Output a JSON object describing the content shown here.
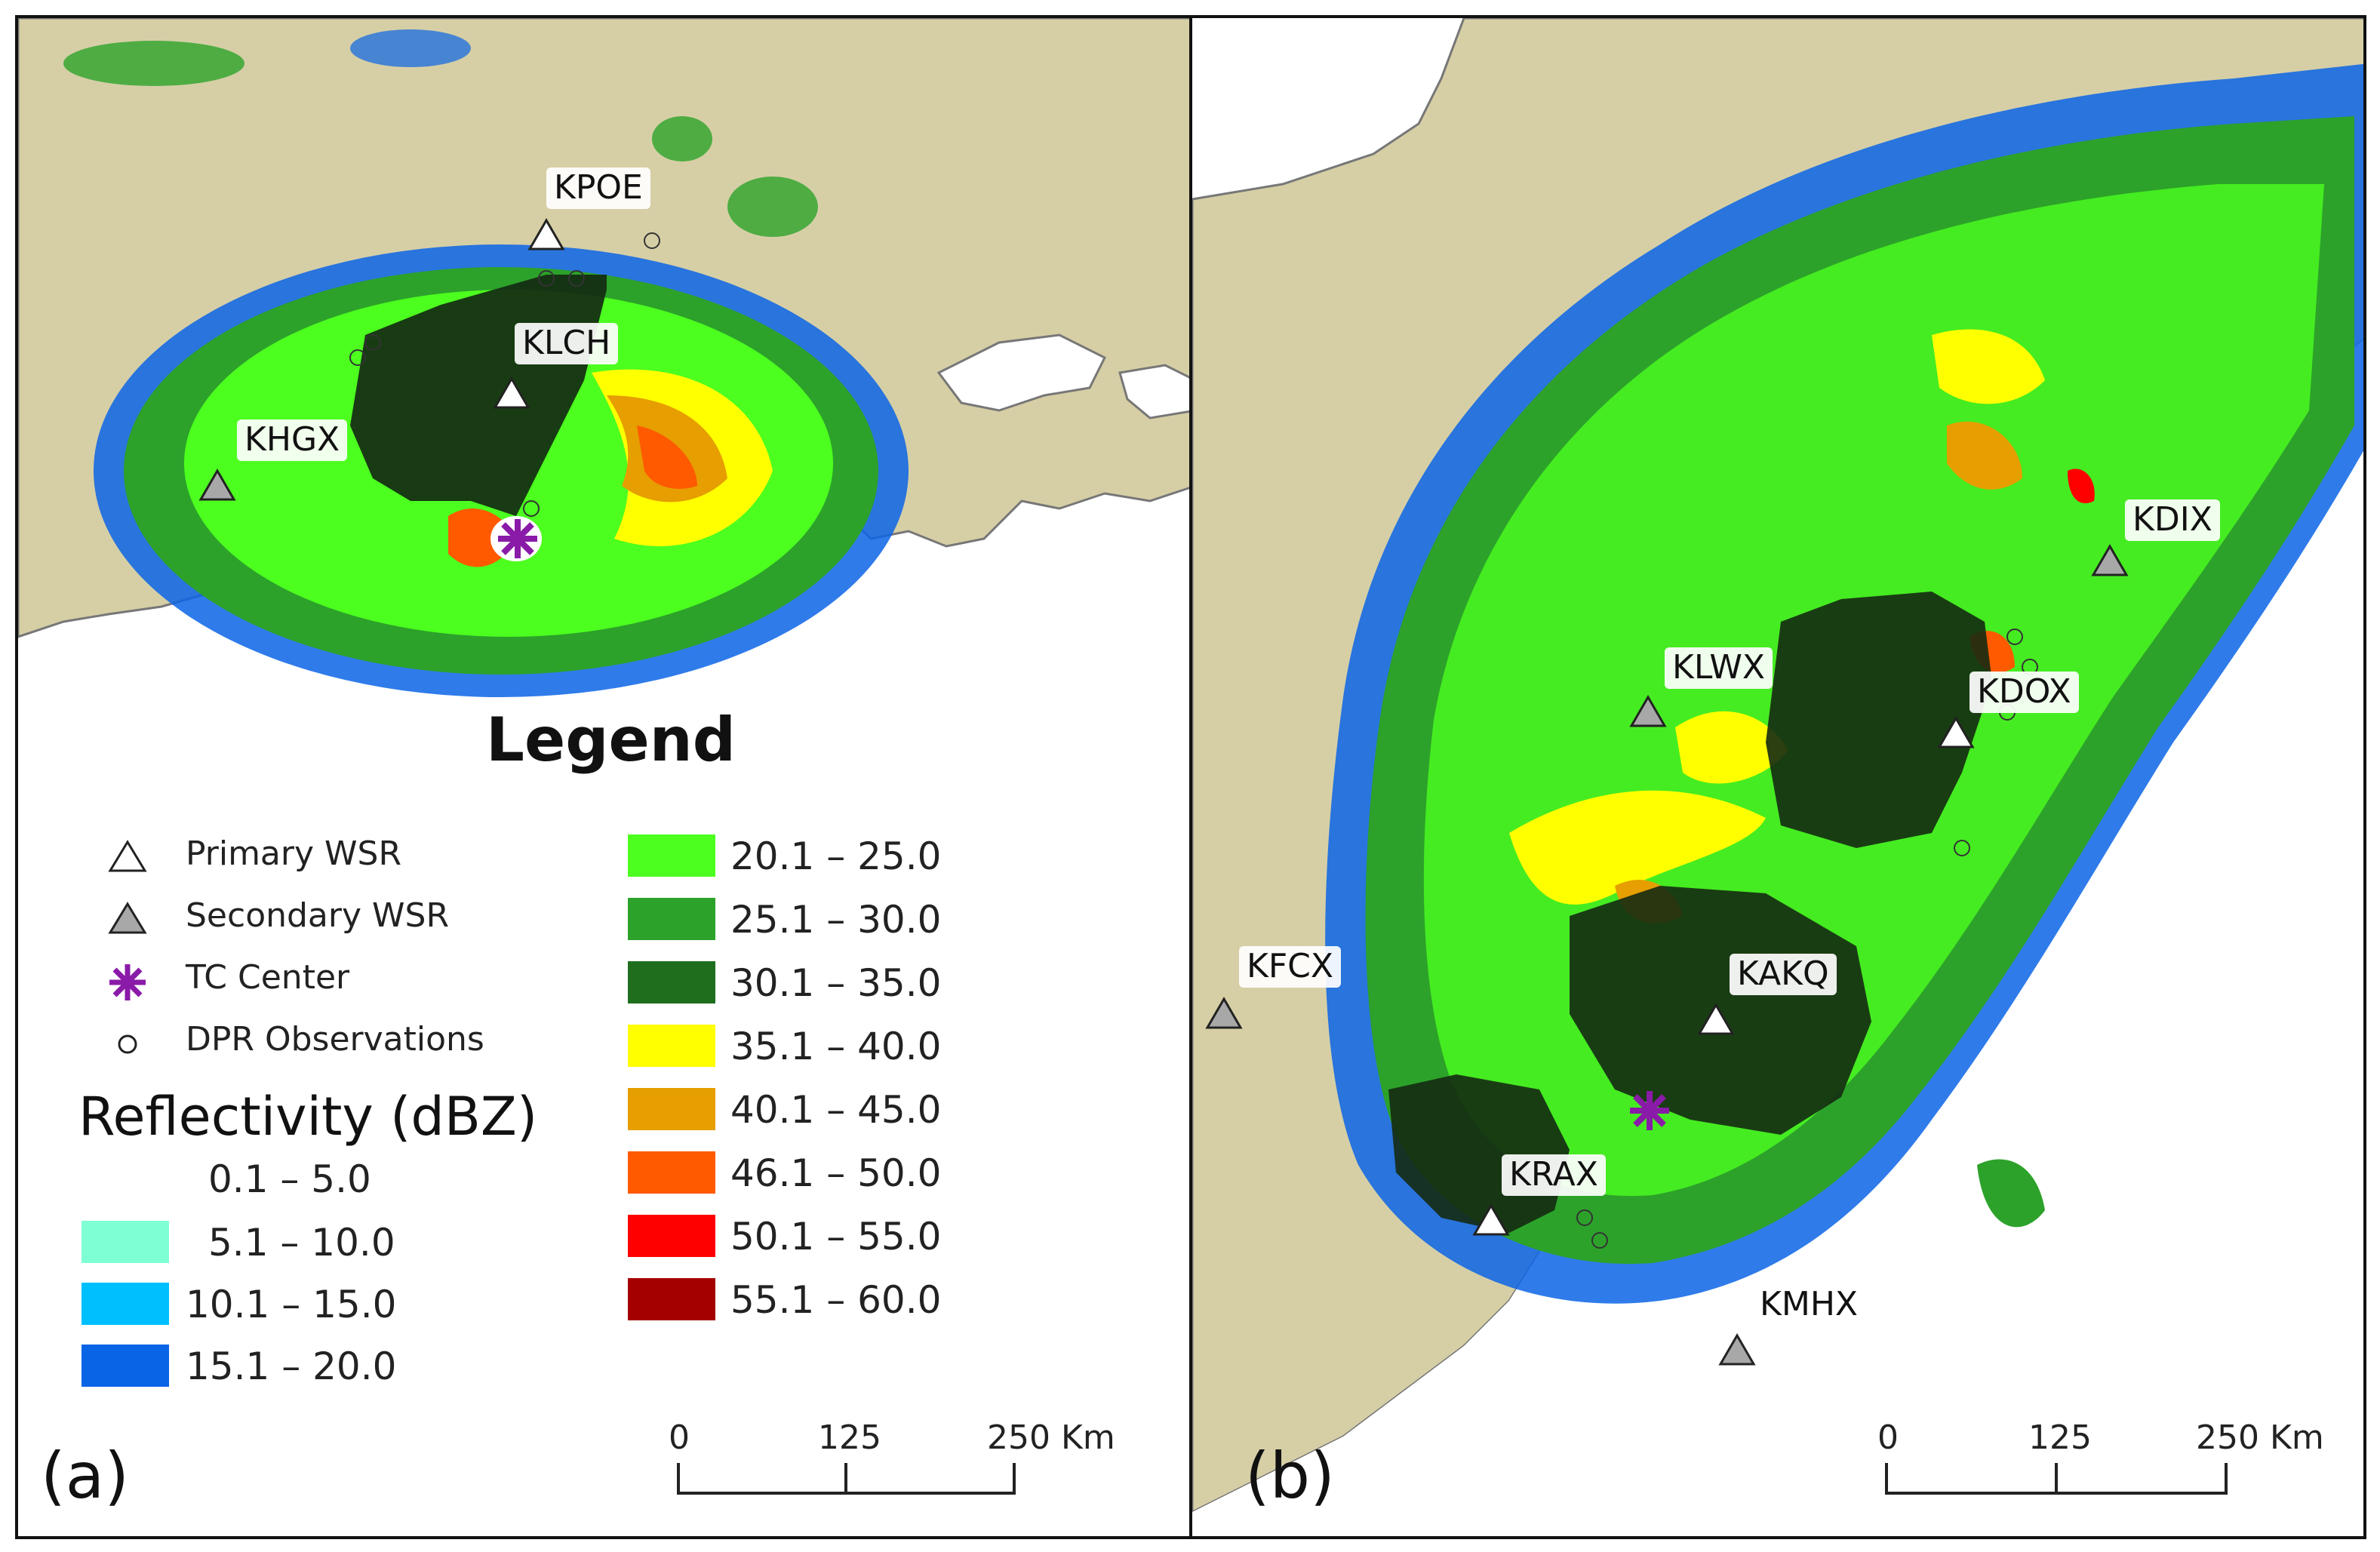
{
  "panels": {
    "a": {
      "letter": "(a)",
      "stations": [
        {
          "id": "KPOE",
          "type": "primary"
        },
        {
          "id": "KLCH",
          "type": "primary"
        },
        {
          "id": "KHGX",
          "type": "secondary"
        }
      ]
    },
    "b": {
      "letter": "(b)",
      "stations": [
        {
          "id": "KDIX",
          "type": "secondary"
        },
        {
          "id": "KDOX",
          "type": "primary"
        },
        {
          "id": "KLWX",
          "type": "secondary"
        },
        {
          "id": "KFCX",
          "type": "secondary"
        },
        {
          "id": "KAKQ",
          "type": "primary"
        },
        {
          "id": "KRAX",
          "type": "primary"
        },
        {
          "id": "KMHX",
          "type": "secondary"
        }
      ]
    }
  },
  "legend": {
    "title": "Legend",
    "symbols": [
      {
        "label": "Primary WSR",
        "symbol": "white-triangle"
      },
      {
        "label": "Secondary WSR",
        "symbol": "gray-triangle"
      },
      {
        "label": "TC Center",
        "symbol": "purple-asterisk"
      },
      {
        "label": "DPR Observations",
        "symbol": "small-circle"
      }
    ],
    "reflectivity_title": "Reflectivity (dBZ)",
    "classes": [
      {
        "range": "0.1 – 5.0",
        "color": "#ffffff"
      },
      {
        "range": "5.1 – 10.0",
        "color": "#7fffd4"
      },
      {
        "range": "10.1 – 15.0",
        "color": "#00bfff"
      },
      {
        "range": "15.1 – 20.0",
        "color": "#0a64e6"
      },
      {
        "range": "20.1 – 25.0",
        "color": "#4cff1f"
      },
      {
        "range": "25.1 – 30.0",
        "color": "#2ca22a"
      },
      {
        "range": "30.1 – 35.0",
        "color": "#1e6e1e"
      },
      {
        "range": "35.1 – 40.0",
        "color": "#ffff00"
      },
      {
        "range": "40.1 – 45.0",
        "color": "#e69e00"
      },
      {
        "range": "46.1 – 50.0",
        "color": "#ff5a00"
      },
      {
        "range": "50.1 – 55.0",
        "color": "#ff0000"
      },
      {
        "range": "55.1 – 60.0",
        "color": "#a50000"
      }
    ]
  },
  "scale_bar": {
    "ticks": [
      "0",
      "125",
      "250 Km"
    ]
  },
  "colors": {
    "land": "#d6cfa6",
    "water": "#ffffff",
    "tc_center": "#8a1aa8",
    "secondary": "#a8a8a8"
  }
}
